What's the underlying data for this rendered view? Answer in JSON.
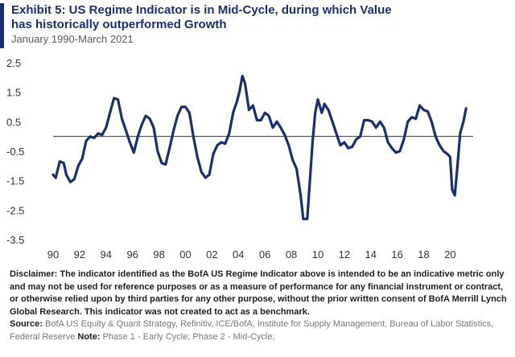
{
  "title_line1": "Exhibit 5: US Regime Indicator is in Mid-Cycle, during which Value",
  "title_line2": "has historically outperformed Growth",
  "subtitle": "January 1990-March 2021",
  "colors": {
    "accent": "#1a2f6e",
    "line": "#1a2f6e",
    "zero": "#333333"
  },
  "chart_data": {
    "type": "line",
    "title": "US Regime Indicator",
    "xlabel": "",
    "ylabel": "",
    "xlim": [
      1990,
      2021.25
    ],
    "ylim": [
      -3.5,
      2.5
    ],
    "yticks": [
      "2.5",
      "1.5",
      "0.5",
      "-0.5",
      "-1.5",
      "-2.5",
      "-3.5"
    ],
    "ytick_values": [
      2.5,
      1.5,
      0.5,
      -0.5,
      -1.5,
      -2.5,
      -3.5
    ],
    "xticks": [
      "90",
      "92",
      "94",
      "96",
      "98",
      "00",
      "02",
      "04",
      "06",
      "08",
      "10",
      "12",
      "14",
      "16",
      "18",
      "20"
    ],
    "xtick_values": [
      1990,
      1992,
      1994,
      1996,
      1998,
      2000,
      2002,
      2004,
      2006,
      2008,
      2010,
      2012,
      2014,
      2016,
      2018,
      2020
    ],
    "reference_line": 0,
    "series": [
      {
        "name": "US Regime Indicator",
        "points": [
          [
            1990.0,
            -1.3
          ],
          [
            1990.2,
            -1.4
          ],
          [
            1990.5,
            -0.85
          ],
          [
            1990.8,
            -0.9
          ],
          [
            1991.0,
            -1.3
          ],
          [
            1991.3,
            -1.55
          ],
          [
            1991.6,
            -1.45
          ],
          [
            1991.9,
            -1.0
          ],
          [
            1992.2,
            -0.75
          ],
          [
            1992.5,
            -0.15
          ],
          [
            1992.8,
            0.0
          ],
          [
            1993.1,
            -0.05
          ],
          [
            1993.4,
            0.1
          ],
          [
            1993.7,
            0.05
          ],
          [
            1994.0,
            0.3
          ],
          [
            1994.3,
            0.8
          ],
          [
            1994.6,
            1.3
          ],
          [
            1994.9,
            1.25
          ],
          [
            1995.2,
            0.6
          ],
          [
            1995.5,
            0.2
          ],
          [
            1995.8,
            -0.2
          ],
          [
            1996.1,
            -0.55
          ],
          [
            1996.4,
            0.0
          ],
          [
            1996.7,
            0.4
          ],
          [
            1997.0,
            0.7
          ],
          [
            1997.3,
            0.6
          ],
          [
            1997.6,
            0.3
          ],
          [
            1997.9,
            -0.5
          ],
          [
            1998.2,
            -0.9
          ],
          [
            1998.5,
            -0.95
          ],
          [
            1998.8,
            -0.4
          ],
          [
            1999.1,
            0.2
          ],
          [
            1999.4,
            0.7
          ],
          [
            1999.7,
            1.0
          ],
          [
            2000.0,
            1.0
          ],
          [
            2000.3,
            0.8
          ],
          [
            2000.6,
            0.0
          ],
          [
            2000.9,
            -0.7
          ],
          [
            2001.2,
            -1.2
          ],
          [
            2001.5,
            -1.4
          ],
          [
            2001.8,
            -1.3
          ],
          [
            2002.1,
            -0.6
          ],
          [
            2002.4,
            -0.3
          ],
          [
            2002.7,
            -0.2
          ],
          [
            2003.0,
            -0.25
          ],
          [
            2003.3,
            0.1
          ],
          [
            2003.6,
            0.8
          ],
          [
            2003.9,
            1.2
          ],
          [
            2004.1,
            1.55
          ],
          [
            2004.3,
            2.05
          ],
          [
            2004.5,
            1.8
          ],
          [
            2004.8,
            0.9
          ],
          [
            2005.1,
            1.05
          ],
          [
            2005.4,
            0.55
          ],
          [
            2005.7,
            0.55
          ],
          [
            2006.0,
            0.8
          ],
          [
            2006.3,
            0.7
          ],
          [
            2006.6,
            0.3
          ],
          [
            2006.9,
            0.5
          ],
          [
            2007.2,
            0.3
          ],
          [
            2007.5,
            0.05
          ],
          [
            2007.8,
            -0.3
          ],
          [
            2008.1,
            -0.8
          ],
          [
            2008.4,
            -1.1
          ],
          [
            2008.7,
            -2.0
          ],
          [
            2008.9,
            -2.8
          ],
          [
            2009.2,
            -2.8
          ],
          [
            2009.4,
            -1.5
          ],
          [
            2009.6,
            -0.2
          ],
          [
            2009.8,
            0.8
          ],
          [
            2010.0,
            1.25
          ],
          [
            2010.3,
            0.8
          ],
          [
            2010.5,
            1.1
          ],
          [
            2010.8,
            0.9
          ],
          [
            2011.1,
            0.5
          ],
          [
            2011.4,
            0.1
          ],
          [
            2011.7,
            -0.3
          ],
          [
            2012.0,
            -0.2
          ],
          [
            2012.3,
            -0.4
          ],
          [
            2012.6,
            -0.35
          ],
          [
            2012.9,
            -0.1
          ],
          [
            2013.2,
            0.0
          ],
          [
            2013.5,
            0.55
          ],
          [
            2013.8,
            0.55
          ],
          [
            2014.1,
            0.5
          ],
          [
            2014.4,
            0.3
          ],
          [
            2014.7,
            0.5
          ],
          [
            2015.0,
            0.3
          ],
          [
            2015.3,
            -0.2
          ],
          [
            2015.6,
            -0.4
          ],
          [
            2015.9,
            -0.55
          ],
          [
            2016.2,
            -0.5
          ],
          [
            2016.5,
            -0.1
          ],
          [
            2016.8,
            0.5
          ],
          [
            2017.1,
            0.65
          ],
          [
            2017.4,
            0.6
          ],
          [
            2017.7,
            1.05
          ],
          [
            2018.0,
            0.9
          ],
          [
            2018.3,
            0.85
          ],
          [
            2018.6,
            0.5
          ],
          [
            2018.9,
            0.0
          ],
          [
            2019.2,
            -0.3
          ],
          [
            2019.5,
            -0.5
          ],
          [
            2019.8,
            -0.6
          ],
          [
            2020.0,
            -0.7
          ],
          [
            2020.15,
            -1.8
          ],
          [
            2020.35,
            -2.0
          ],
          [
            2020.55,
            -1.0
          ],
          [
            2020.75,
            0.1
          ],
          [
            2021.0,
            0.5
          ],
          [
            2021.2,
            0.95
          ]
        ]
      }
    ]
  },
  "footer": {
    "disclaimer_label": "Disclaimer:",
    "disclaimer_text": "The indicator identified as the BofA US Regime Indicator above is intended to be an indicative metric only and may not be used for reference purposes or as a measure of performance for any financial instrument or contract, or otherwise relied upon by third parties for any other purpose, without the prior written consent of BofA Merrill Lynch Global Research. This indicator was not created to act as a benchmark.",
    "source_label": "Source:",
    "source_text": "BofA US Equity & Quant Strategy, Refinitiv, ICE/BofA, Institute for Supply Management, Bureau of Labor Statistics, Federal Reserve",
    "note_label": "Note:",
    "note_text": "Phase 1 - Early Cycle; Phase 2 - Mid-Cycle;"
  }
}
